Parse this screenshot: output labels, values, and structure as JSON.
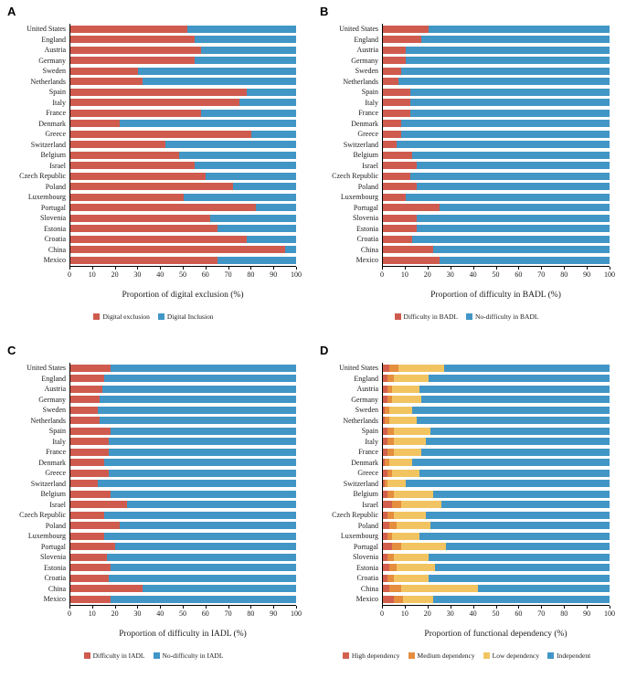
{
  "chart_data": [
    {
      "panel": "A",
      "type": "bar",
      "orientation": "horizontal",
      "stacked": true,
      "xlabel": "Proportion of digital exclusion (%)",
      "xlim": [
        0,
        100
      ],
      "xticks": [
        0,
        10,
        20,
        30,
        40,
        50,
        60,
        70,
        80,
        90,
        100
      ],
      "legend_position": "bottom",
      "categories": [
        "United States",
        "England",
        "Austria",
        "Germany",
        "Sweden",
        "Netherlands",
        "Spain",
        "Italy",
        "France",
        "Denmark",
        "Greece",
        "Switzerland",
        "Belgium",
        "Israel",
        "Czech Republic",
        "Poland",
        "Luxembourg",
        "Portugal",
        "Slovenia",
        "Estonia",
        "Croatia",
        "China",
        "Mexico"
      ],
      "series": [
        {
          "name": "Digital exclusion",
          "color": "#cf5b4e",
          "values": [
            52,
            55,
            58,
            55,
            30,
            32,
            78,
            75,
            58,
            22,
            80,
            42,
            48,
            55,
            60,
            72,
            50,
            82,
            62,
            65,
            78,
            95,
            65
          ]
        },
        {
          "name": "Digital Inclusion",
          "color": "#4196c6",
          "values": [
            48,
            45,
            42,
            45,
            70,
            68,
            22,
            25,
            42,
            78,
            20,
            58,
            52,
            45,
            40,
            28,
            50,
            18,
            38,
            35,
            22,
            5,
            35
          ]
        }
      ]
    },
    {
      "panel": "B",
      "type": "bar",
      "orientation": "horizontal",
      "stacked": true,
      "xlabel": "Proportion of difficulty in BADL (%)",
      "xlim": [
        0,
        100
      ],
      "xticks": [
        0,
        10,
        20,
        30,
        40,
        50,
        60,
        70,
        80,
        90,
        100
      ],
      "legend_position": "bottom",
      "categories": [
        "United States",
        "England",
        "Austria",
        "Germany",
        "Sweden",
        "Netherlands",
        "Spain",
        "Italy",
        "France",
        "Denmark",
        "Greece",
        "Switzerland",
        "Belgium",
        "Israel",
        "Czech Republic",
        "Poland",
        "Luxembourg",
        "Portugal",
        "Slovenia",
        "Estonia",
        "Croatia",
        "China",
        "Mexico"
      ],
      "series": [
        {
          "name": "Difficulty in BADL",
          "color": "#cf5b4e",
          "values": [
            20,
            17,
            10,
            10,
            8,
            7,
            12,
            12,
            12,
            8,
            8,
            6,
            13,
            15,
            12,
            15,
            10,
            25,
            15,
            15,
            13,
            22,
            25
          ]
        },
        {
          "name": "No-difficulty in BADL",
          "color": "#4196c6",
          "values": [
            80,
            83,
            90,
            90,
            92,
            93,
            88,
            88,
            88,
            92,
            92,
            94,
            87,
            85,
            88,
            85,
            90,
            75,
            85,
            85,
            87,
            78,
            75
          ]
        }
      ]
    },
    {
      "panel": "C",
      "type": "bar",
      "orientation": "horizontal",
      "stacked": true,
      "xlabel": "Proportion of difficulty in IADL (%)",
      "xlim": [
        0,
        100
      ],
      "xticks": [
        0,
        10,
        20,
        30,
        40,
        50,
        60,
        70,
        80,
        90,
        100
      ],
      "legend_position": "bottom",
      "categories": [
        "United States",
        "England",
        "Austria",
        "Germany",
        "Sweden",
        "Netherlands",
        "Spain",
        "Italy",
        "France",
        "Denmark",
        "Greece",
        "Switzerland",
        "Belgium",
        "Israel",
        "Czech Republic",
        "Poland",
        "Luxembourg",
        "Portugal",
        "Slovenia",
        "Estonia",
        "Croatia",
        "China",
        "Mexico"
      ],
      "series": [
        {
          "name": "Difficulty in IADL",
          "color": "#cf5b4e",
          "values": [
            18,
            15,
            14,
            13,
            12,
            13,
            18,
            17,
            17,
            15,
            17,
            12,
            18,
            25,
            15,
            22,
            15,
            20,
            16,
            18,
            17,
            32,
            18
          ]
        },
        {
          "name": "No-difficulty in IADL",
          "color": "#4196c6",
          "values": [
            82,
            85,
            86,
            87,
            88,
            87,
            82,
            83,
            83,
            85,
            83,
            88,
            82,
            75,
            85,
            78,
            85,
            80,
            84,
            82,
            83,
            68,
            82
          ]
        }
      ]
    },
    {
      "panel": "D",
      "type": "bar",
      "orientation": "horizontal",
      "stacked": true,
      "xlabel": "Proportion of functional dependency (%)",
      "xlim": [
        0,
        100
      ],
      "xticks": [
        0,
        10,
        20,
        30,
        40,
        50,
        60,
        70,
        80,
        90,
        100
      ],
      "legend_position": "bottom",
      "categories": [
        "United States",
        "England",
        "Austria",
        "Germany",
        "Sweden",
        "Netherlands",
        "Spain",
        "Italy",
        "France",
        "Denmark",
        "Greece",
        "Switzerland",
        "Belgium",
        "Israel",
        "Czech Republic",
        "Poland",
        "Luxembourg",
        "Portugal",
        "Slovenia",
        "Estonia",
        "Croatia",
        "China",
        "Mexico"
      ],
      "series": [
        {
          "name": "High dependency",
          "color": "#d2604d",
          "values": [
            3,
            2,
            2,
            2,
            1,
            1,
            2,
            2,
            2,
            1,
            2,
            1,
            2,
            4,
            2,
            3,
            2,
            4,
            2,
            3,
            2,
            3,
            5
          ]
        },
        {
          "name": "Medium dependency",
          "color": "#e58e3f",
          "values": [
            4,
            3,
            2,
            2,
            2,
            2,
            3,
            3,
            3,
            2,
            2,
            1,
            3,
            4,
            3,
            3,
            2,
            4,
            3,
            3,
            3,
            5,
            4
          ]
        },
        {
          "name": "Low dependency",
          "color": "#f2c461",
          "values": [
            20,
            15,
            12,
            13,
            10,
            12,
            16,
            14,
            12,
            10,
            12,
            8,
            17,
            18,
            14,
            15,
            12,
            20,
            15,
            17,
            15,
            34,
            13
          ]
        },
        {
          "name": "Independent",
          "color": "#4196c6",
          "values": [
            73,
            80,
            84,
            83,
            87,
            85,
            79,
            81,
            83,
            87,
            84,
            90,
            78,
            74,
            81,
            79,
            84,
            72,
            80,
            77,
            80,
            58,
            78
          ]
        }
      ]
    }
  ]
}
